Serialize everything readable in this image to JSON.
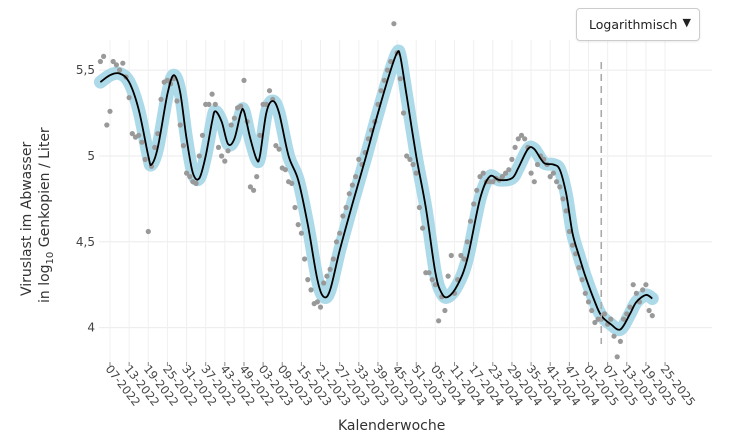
{
  "controls": {
    "scale_select": {
      "selected": "Logarithmisch",
      "caret": "▼"
    }
  },
  "chart_data": {
    "type": "line",
    "ylabel_line1": "Viruslast im Abwasser",
    "ylabel_line2_prefix": "in log",
    "ylabel_line2_sub": "10",
    "ylabel_line2_suffix": " Genkopien / Liter",
    "xlabel": "Kalenderwoche",
    "ylim": [
      3.8,
      5.85
    ],
    "ytick_values": [
      4,
      4.5,
      5,
      5.5
    ],
    "ytick_labels": [
      "4",
      "4,5",
      "5",
      "5,5"
    ],
    "x_categories": [
      "07-2022",
      "13-2022",
      "19-2022",
      "25-2022",
      "31-2022",
      "37-2022",
      "43-2022",
      "49-2022",
      "03-2023",
      "09-2023",
      "15-2023",
      "21-2023",
      "27-2023",
      "33-2023",
      "39-2023",
      "45-2023",
      "51-2023",
      "05-2024",
      "11-2024",
      "17-2024",
      "23-2024",
      "29-2024",
      "35-2024",
      "41-2024",
      "47-2024",
      "01-2025",
      "07-2025",
      "13-2025",
      "19-2025",
      "25-2025"
    ],
    "x_start_week": "07-2022",
    "weeks_total": 175,
    "week_step_per_tick": 6,
    "reference_line_week_index": 154,
    "grid": true,
    "line_color": "#000000",
    "band_color": "#a8d8e8",
    "point_color": "#999999",
    "curve_knots": [
      {
        "w": -3,
        "v": 5.43
      },
      {
        "w": 0,
        "v": 5.47
      },
      {
        "w": 3,
        "v": 5.48
      },
      {
        "w": 6,
        "v": 5.43
      },
      {
        "w": 9,
        "v": 5.27
      },
      {
        "w": 12,
        "v": 5.0
      },
      {
        "w": 13,
        "v": 4.95
      },
      {
        "w": 15,
        "v": 5.05
      },
      {
        "w": 18,
        "v": 5.36
      },
      {
        "w": 20,
        "v": 5.47
      },
      {
        "w": 22,
        "v": 5.37
      },
      {
        "w": 24,
        "v": 5.1
      },
      {
        "w": 26,
        "v": 4.9
      },
      {
        "w": 28,
        "v": 4.87
      },
      {
        "w": 30,
        "v": 5.0
      },
      {
        "w": 32,
        "v": 5.2
      },
      {
        "w": 33,
        "v": 5.26
      },
      {
        "w": 35,
        "v": 5.2
      },
      {
        "w": 37,
        "v": 5.07
      },
      {
        "w": 39,
        "v": 5.1
      },
      {
        "w": 41,
        "v": 5.25
      },
      {
        "w": 42,
        "v": 5.26
      },
      {
        "w": 44,
        "v": 5.1
      },
      {
        "w": 46,
        "v": 4.98
      },
      {
        "w": 47,
        "v": 5.0
      },
      {
        "w": 49,
        "v": 5.25
      },
      {
        "w": 51,
        "v": 5.32
      },
      {
        "w": 53,
        "v": 5.25
      },
      {
        "w": 56,
        "v": 5.0
      },
      {
        "w": 59,
        "v": 4.86
      },
      {
        "w": 62,
        "v": 4.6
      },
      {
        "w": 65,
        "v": 4.28
      },
      {
        "w": 67,
        "v": 4.18
      },
      {
        "w": 69,
        "v": 4.22
      },
      {
        "w": 72,
        "v": 4.45
      },
      {
        "w": 76,
        "v": 4.72
      },
      {
        "w": 80,
        "v": 4.98
      },
      {
        "w": 84,
        "v": 5.25
      },
      {
        "w": 88,
        "v": 5.5
      },
      {
        "w": 90,
        "v": 5.6
      },
      {
        "w": 91,
        "v": 5.58
      },
      {
        "w": 93,
        "v": 5.35
      },
      {
        "w": 96,
        "v": 5.0
      },
      {
        "w": 99,
        "v": 4.7
      },
      {
        "w": 102,
        "v": 4.32
      },
      {
        "w": 104,
        "v": 4.2
      },
      {
        "w": 106,
        "v": 4.18
      },
      {
        "w": 109,
        "v": 4.25
      },
      {
        "w": 112,
        "v": 4.4
      },
      {
        "w": 116,
        "v": 4.75
      },
      {
        "w": 119,
        "v": 4.88
      },
      {
        "w": 122,
        "v": 4.86
      },
      {
        "w": 126,
        "v": 4.87
      },
      {
        "w": 128,
        "v": 4.93
      },
      {
        "w": 131,
        "v": 5.04
      },
      {
        "w": 133,
        "v": 5.04
      },
      {
        "w": 136,
        "v": 4.96
      },
      {
        "w": 139,
        "v": 4.95
      },
      {
        "w": 141,
        "v": 4.92
      },
      {
        "w": 143,
        "v": 4.78
      },
      {
        "w": 145,
        "v": 4.55
      },
      {
        "w": 147,
        "v": 4.42
      },
      {
        "w": 149,
        "v": 4.3
      },
      {
        "w": 152,
        "v": 4.15
      },
      {
        "w": 154,
        "v": 4.07
      },
      {
        "w": 157,
        "v": 4.02
      },
      {
        "w": 160,
        "v": 3.99
      },
      {
        "w": 163,
        "v": 4.08
      },
      {
        "w": 165,
        "v": 4.15
      },
      {
        "w": 168,
        "v": 4.19
      },
      {
        "w": 170,
        "v": 4.17
      }
    ],
    "points": [
      [
        -3,
        5.55
      ],
      [
        -2,
        5.58
      ],
      [
        -1,
        5.18
      ],
      [
        0,
        5.26
      ],
      [
        1,
        5.55
      ],
      [
        2,
        5.53
      ],
      [
        3,
        5.5
      ],
      [
        4,
        5.54
      ],
      [
        5,
        5.46
      ],
      [
        6,
        5.34
      ],
      [
        7,
        5.13
      ],
      [
        8,
        5.11
      ],
      [
        9,
        5.12
      ],
      [
        10,
        5.08
      ],
      [
        11,
        4.98
      ],
      [
        12,
        4.56
      ],
      [
        13,
        4.94
      ],
      [
        14,
        5.05
      ],
      [
        15,
        5.13
      ],
      [
        16,
        5.33
      ],
      [
        17,
        5.43
      ],
      [
        18,
        5.44
      ],
      [
        19,
        5.42
      ],
      [
        20,
        5.45
      ],
      [
        21,
        5.32
      ],
      [
        22,
        5.18
      ],
      [
        23,
        5.06
      ],
      [
        24,
        4.9
      ],
      [
        25,
        4.88
      ],
      [
        26,
        4.85
      ],
      [
        27,
        4.84
      ],
      [
        28,
        5.0
      ],
      [
        29,
        5.12
      ],
      [
        30,
        5.3
      ],
      [
        31,
        5.3
      ],
      [
        32,
        5.36
      ],
      [
        33,
        5.3
      ],
      [
        34,
        5.05
      ],
      [
        35,
        5.0
      ],
      [
        36,
        4.97
      ],
      [
        37,
        5.03
      ],
      [
        38,
        5.18
      ],
      [
        39,
        5.22
      ],
      [
        40,
        5.28
      ],
      [
        41,
        5.29
      ],
      [
        42,
        5.44
      ],
      [
        43,
        5.2
      ],
      [
        44,
        4.82
      ],
      [
        45,
        4.8
      ],
      [
        46,
        4.88
      ],
      [
        47,
        5.12
      ],
      [
        48,
        5.3
      ],
      [
        49,
        5.3
      ],
      [
        50,
        5.38
      ],
      [
        51,
        5.33
      ],
      [
        52,
        5.06
      ],
      [
        53,
        5.04
      ],
      [
        54,
        4.93
      ],
      [
        55,
        4.92
      ],
      [
        56,
        4.85
      ],
      [
        57,
        4.84
      ],
      [
        58,
        4.7
      ],
      [
        59,
        4.6
      ],
      [
        60,
        4.55
      ],
      [
        61,
        4.4
      ],
      [
        62,
        4.28
      ],
      [
        63,
        4.22
      ],
      [
        64,
        4.14
      ],
      [
        65,
        4.15
      ],
      [
        66,
        4.12
      ],
      [
        67,
        4.26
      ],
      [
        68,
        4.3
      ],
      [
        69,
        4.34
      ],
      [
        70,
        4.4
      ],
      [
        71,
        4.5
      ],
      [
        72,
        4.55
      ],
      [
        73,
        4.65
      ],
      [
        74,
        4.7
      ],
      [
        75,
        4.78
      ],
      [
        76,
        4.83
      ],
      [
        77,
        4.88
      ],
      [
        78,
        4.98
      ],
      [
        79,
        4.95
      ],
      [
        80,
        5.02
      ],
      [
        81,
        5.1
      ],
      [
        82,
        5.15
      ],
      [
        83,
        5.2
      ],
      [
        84,
        5.3
      ],
      [
        85,
        5.38
      ],
      [
        86,
        5.44
      ],
      [
        87,
        5.5
      ],
      [
        88,
        5.55
      ],
      [
        89,
        5.77
      ],
      [
        90,
        5.6
      ],
      [
        91,
        5.45
      ],
      [
        92,
        5.25
      ],
      [
        93,
        5.0
      ],
      [
        94,
        4.98
      ],
      [
        95,
        4.95
      ],
      [
        96,
        4.9
      ],
      [
        97,
        4.7
      ],
      [
        98,
        4.58
      ],
      [
        99,
        4.32
      ],
      [
        100,
        4.32
      ],
      [
        101,
        4.28
      ],
      [
        102,
        4.25
      ],
      [
        103,
        4.04
      ],
      [
        104,
        4.18
      ],
      [
        105,
        4.1
      ],
      [
        106,
        4.3
      ],
      [
        107,
        4.42
      ],
      [
        108,
        4.2
      ],
      [
        109,
        4.28
      ],
      [
        110,
        4.42
      ],
      [
        111,
        4.4
      ],
      [
        112,
        4.5
      ],
      [
        113,
        4.62
      ],
      [
        114,
        4.72
      ],
      [
        115,
        4.8
      ],
      [
        116,
        4.88
      ],
      [
        117,
        4.9
      ],
      [
        118,
        4.85
      ],
      [
        119,
        4.85
      ],
      [
        120,
        4.85
      ],
      [
        121,
        4.87
      ],
      [
        122,
        4.86
      ],
      [
        123,
        4.88
      ],
      [
        124,
        4.9
      ],
      [
        125,
        4.92
      ],
      [
        126,
        4.98
      ],
      [
        127,
        5.05
      ],
      [
        128,
        5.1
      ],
      [
        129,
        5.12
      ],
      [
        130,
        5.1
      ],
      [
        131,
        5.05
      ],
      [
        132,
        4.9
      ],
      [
        133,
        4.85
      ],
      [
        134,
        4.95
      ],
      [
        135,
        5.0
      ],
      [
        136,
        4.98
      ],
      [
        137,
        4.95
      ],
      [
        138,
        4.88
      ],
      [
        139,
        4.9
      ],
      [
        140,
        4.85
      ],
      [
        141,
        4.82
      ],
      [
        142,
        4.75
      ],
      [
        143,
        4.68
      ],
      [
        144,
        4.56
      ],
      [
        145,
        4.48
      ],
      [
        146,
        4.43
      ],
      [
        147,
        4.35
      ],
      [
        148,
        4.28
      ],
      [
        149,
        4.2
      ],
      [
        150,
        4.15
      ],
      [
        151,
        4.1
      ],
      [
        152,
        4.03
      ],
      [
        153,
        4.05
      ],
      [
        154,
        4.05
      ],
      [
        155,
        4.08
      ],
      [
        156,
        4.02
      ],
      [
        157,
        4.05
      ],
      [
        158,
        3.95
      ],
      [
        159,
        3.83
      ],
      [
        160,
        3.92
      ],
      [
        161,
        4.05
      ],
      [
        162,
        4.08
      ],
      [
        163,
        4.12
      ],
      [
        164,
        4.25
      ],
      [
        165,
        4.2
      ],
      [
        166,
        4.15
      ],
      [
        167,
        4.22
      ],
      [
        168,
        4.25
      ],
      [
        169,
        4.1
      ],
      [
        170,
        4.07
      ]
    ]
  }
}
